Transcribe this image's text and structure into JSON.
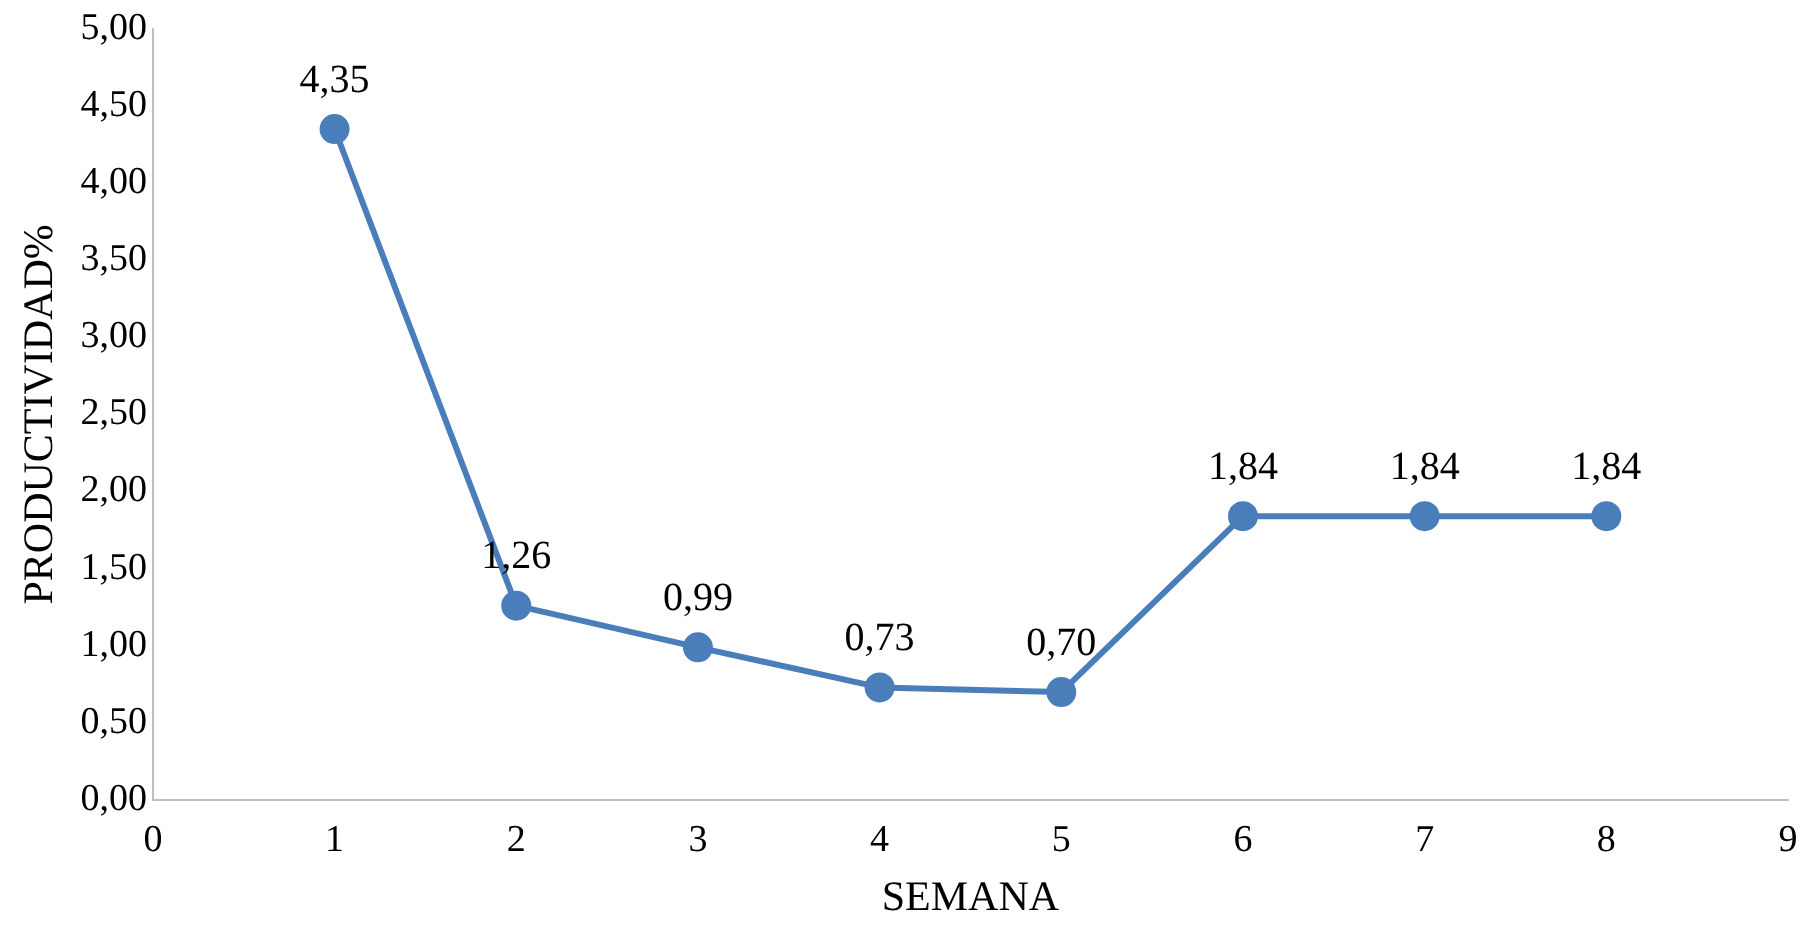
{
  "chart_data": {
    "type": "line",
    "xlabel": "SEMANA",
    "ylabel": "PRODUCTIVIDAD%",
    "x": [
      1,
      2,
      3,
      4,
      5,
      6,
      7,
      8
    ],
    "series": [
      {
        "color": "#4a7ebb",
        "values": [
          4.35,
          1.26,
          0.99,
          0.73,
          0.7,
          1.84,
          1.84,
          1.84
        ],
        "value_labels": [
          "4,35",
          "1,26",
          "0,99",
          "0,73",
          "0,70",
          "1,84",
          "1,84",
          "1,84"
        ]
      }
    ],
    "xlim": [
      0,
      9
    ],
    "xticks": [
      0,
      1,
      2,
      3,
      4,
      5,
      6,
      7,
      8,
      9
    ],
    "ylim": [
      0,
      5
    ],
    "yticks": [
      {
        "value": 0,
        "label": "0,00"
      },
      {
        "value": 0.5,
        "label": "0,50"
      },
      {
        "value": 1,
        "label": "1,00"
      },
      {
        "value": 1.5,
        "label": "1,50"
      },
      {
        "value": 2,
        "label": "2,00"
      },
      {
        "value": 2.5,
        "label": "2,50"
      },
      {
        "value": 3,
        "label": "3,00"
      },
      {
        "value": 3.5,
        "label": "3,50"
      },
      {
        "value": 4,
        "label": "4,00"
      },
      {
        "value": 4.5,
        "label": "4,50"
      },
      {
        "value": 5,
        "label": "5,00"
      }
    ],
    "grid": false,
    "legend": false,
    "marker": "circle",
    "line_style": "solid"
  }
}
